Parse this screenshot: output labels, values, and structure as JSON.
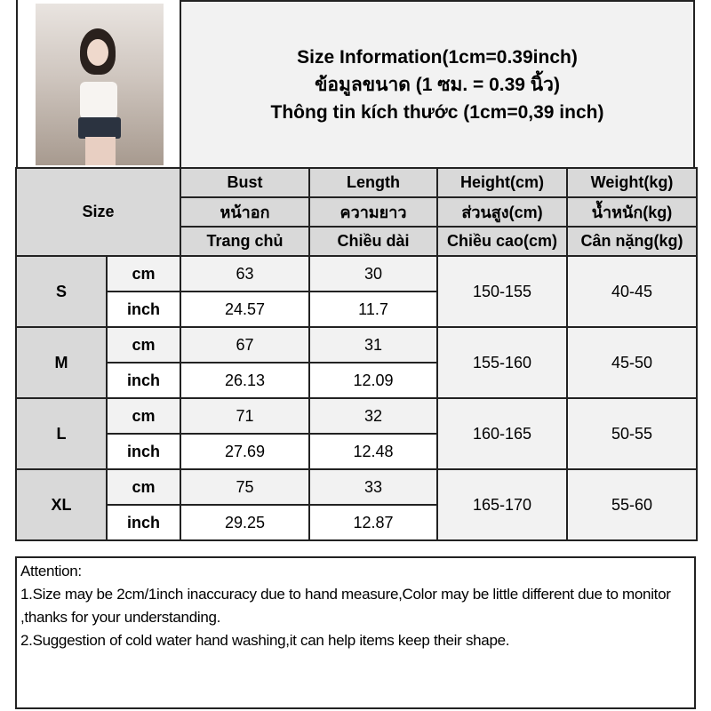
{
  "header": {
    "line1": "Size Information(1cm=0.39inch)",
    "line2": "ข้อมูลขนาด (1 ซม. = 0.39 นิ้ว)",
    "line3": "Thông tin kích thước (1cm=0,39 inch)"
  },
  "table": {
    "size_label": "Size",
    "columns": [
      {
        "en": "Bust",
        "th": "หน้าอก",
        "vi": "Trang chủ"
      },
      {
        "en": "Length",
        "th": "ความยาว",
        "vi": "Chiều dài"
      },
      {
        "en": "Height(cm)",
        "th": "ส่วนสูง(cm)",
        "vi": "Chiều cao(cm)"
      },
      {
        "en": "Weight(kg)",
        "th": "น้ำหนัก(kg)",
        "vi": "Cân nặng(kg)"
      }
    ],
    "unit_cm": "cm",
    "unit_inch": "inch",
    "rows": [
      {
        "size": "S",
        "bust_cm": "63",
        "length_cm": "30",
        "bust_inch": "24.57",
        "length_inch": "11.7",
        "height": "150-155",
        "weight": "40-45"
      },
      {
        "size": "M",
        "bust_cm": "67",
        "length_cm": "31",
        "bust_inch": "26.13",
        "length_inch": "12.09",
        "height": "155-160",
        "weight": "45-50"
      },
      {
        "size": "L",
        "bust_cm": "71",
        "length_cm": "32",
        "bust_inch": "27.69",
        "length_inch": "12.48",
        "height": "160-165",
        "weight": "50-55"
      },
      {
        "size": "XL",
        "bust_cm": "75",
        "length_cm": "33",
        "bust_inch": "29.25",
        "length_inch": "12.87",
        "height": "165-170",
        "weight": "55-60"
      }
    ]
  },
  "notes": {
    "title": "Attention:",
    "line1": "1.Size may be 2cm/1inch inaccuracy due to hand measure,Color may be little different due to monitor ,thanks for your understanding.",
    "line2": "2.Suggestion of cold water hand washing,it can help items keep their shape."
  }
}
